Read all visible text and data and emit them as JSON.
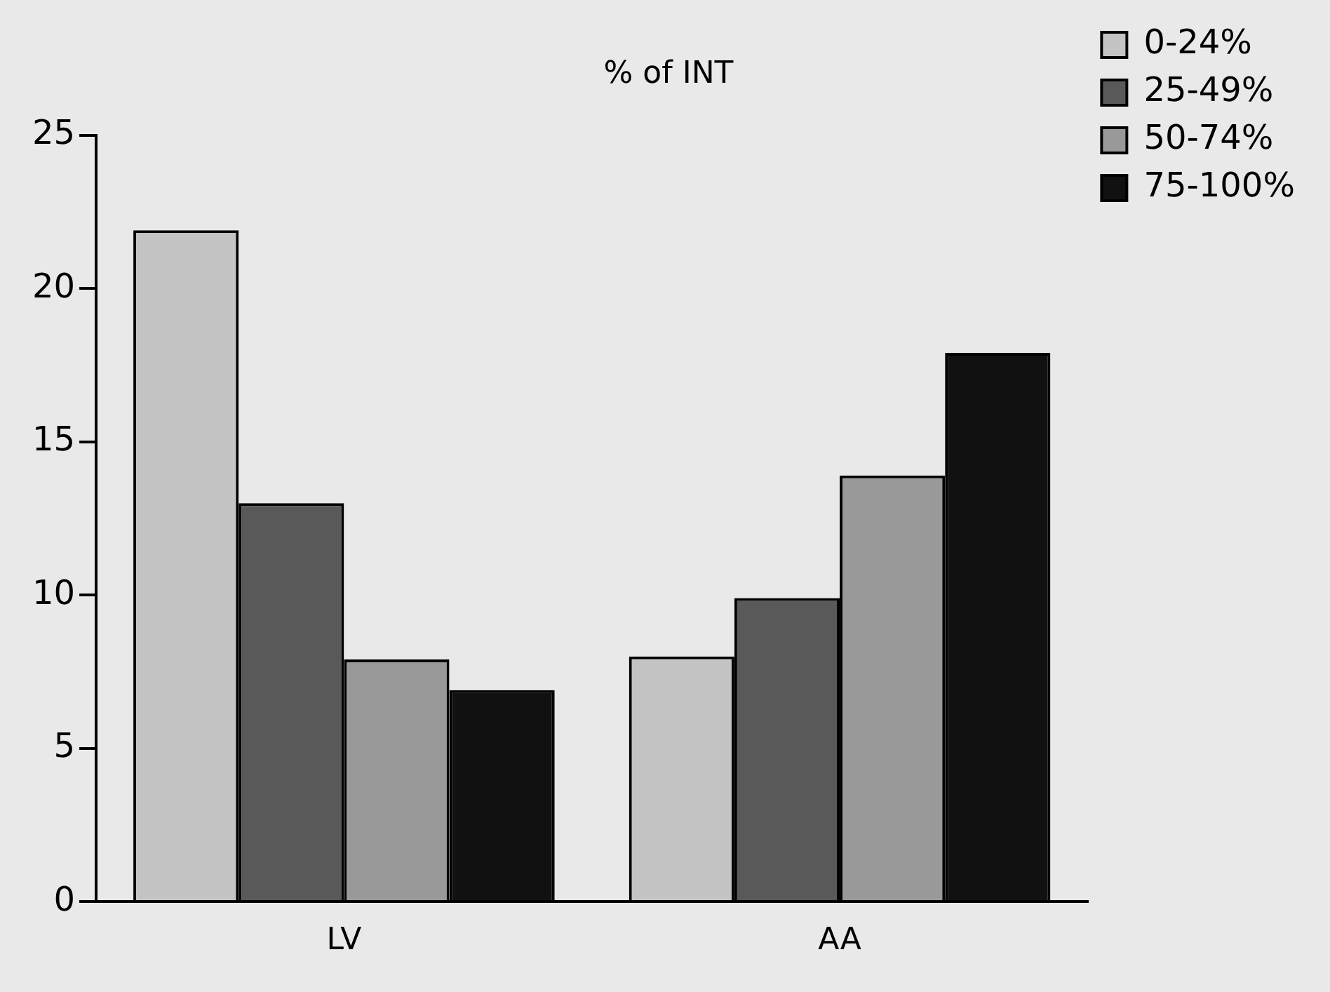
{
  "chart_data": {
    "type": "bar",
    "title": "% of INT",
    "categories": [
      "LV",
      "AA"
    ],
    "series": [
      {
        "name": "0-24%",
        "color": "#c4c4c4",
        "values": [
          21.9,
          8.0
        ]
      },
      {
        "name": "25-49%",
        "color": "#595959",
        "values": [
          13.0,
          9.9
        ]
      },
      {
        "name": "50-74%",
        "color": "#999999",
        "values": [
          7.9,
          13.9
        ]
      },
      {
        "name": "75-100%",
        "color": "#111111",
        "values": [
          6.9,
          17.9
        ]
      }
    ],
    "ylim": [
      0,
      25
    ],
    "yticks": [
      0,
      5,
      10,
      15,
      20,
      25
    ],
    "grid": false,
    "legend": "top right"
  }
}
